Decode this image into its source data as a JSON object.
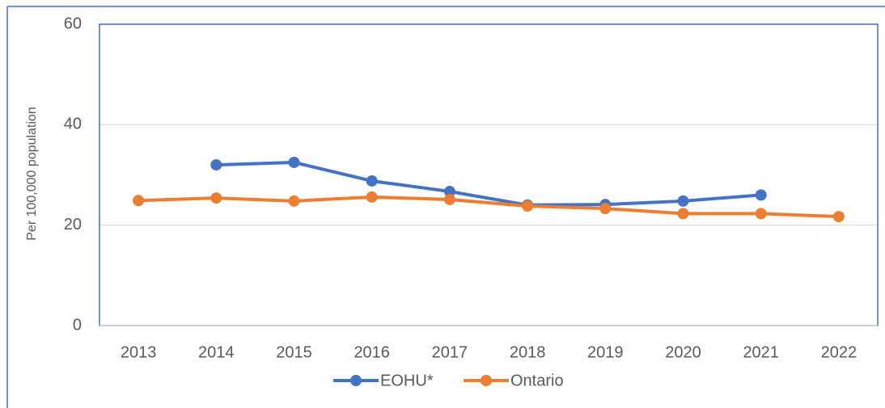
{
  "chart_data": {
    "type": "line",
    "y_label": "Per 100,000 population",
    "categories": [
      "2013",
      "2014",
      "2015",
      "2016",
      "2017",
      "2018",
      "2019",
      "2020",
      "2021",
      "2022"
    ],
    "series": [
      {
        "name": "EOHU*",
        "color": "#4472c4",
        "values": [
          null,
          32.0,
          32.5,
          28.8,
          26.7,
          24.0,
          24.1,
          24.8,
          26.0,
          null
        ]
      },
      {
        "name": "Ontario",
        "color": "#ed7d31",
        "values": [
          24.9,
          25.4,
          24.8,
          25.6,
          25.1,
          23.8,
          23.3,
          22.3,
          22.3,
          21.7
        ]
      }
    ],
    "ylim": [
      0,
      60
    ],
    "yticks": [
      0,
      20,
      40,
      60
    ],
    "grid": true,
    "legend": "bottom"
  }
}
